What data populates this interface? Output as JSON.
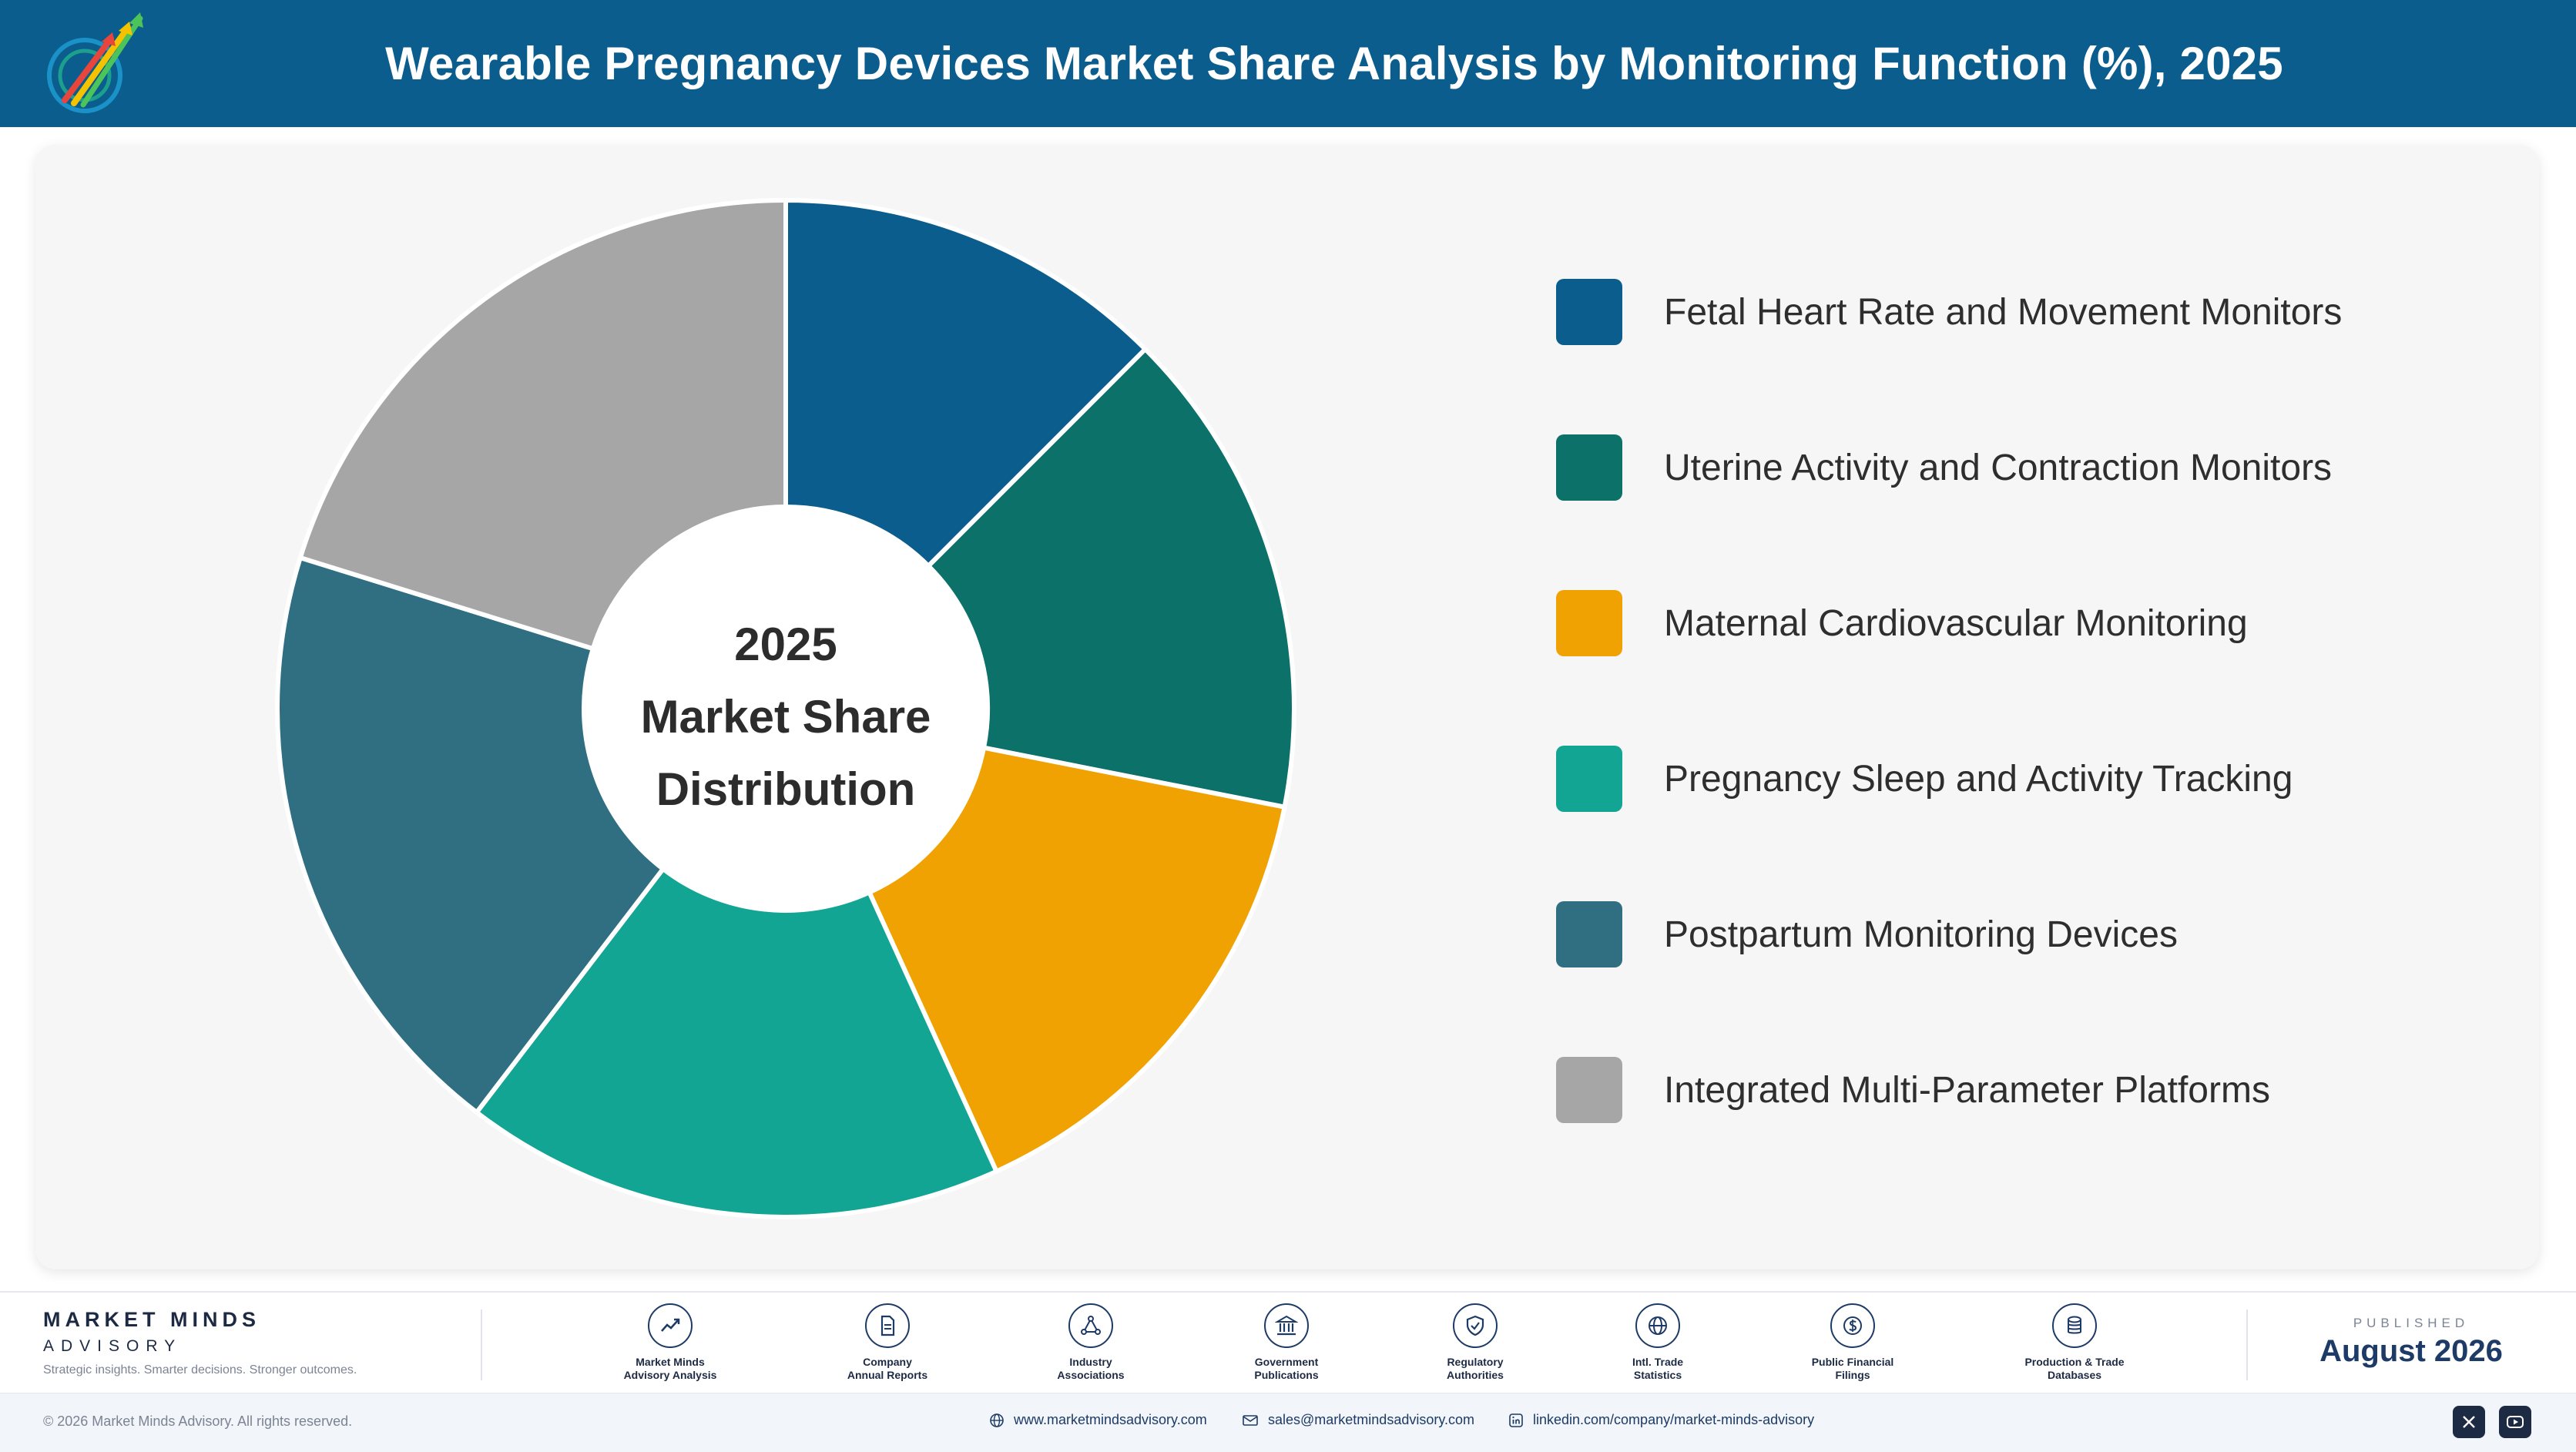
{
  "header": {
    "title": "Wearable Pregnancy Devices Market Share Analysis by Monitoring Function (%), 2025",
    "logo_icon": "rising-arrows-logo-icon"
  },
  "chart_data": {
    "type": "pie",
    "variant": "donut",
    "title": "Wearable Pregnancy Devices Market Share Analysis by Monitoring Function (%), 2025",
    "center_label": [
      "2025",
      "Market Share",
      "Distribution"
    ],
    "categories": [
      "Fetal Heart Rate and Movement Monitors",
      "Uterine Activity and Contraction Monitors",
      "Maternal Cardiovascular Monitoring",
      "Pregnancy Sleep and Activity Tracking",
      "Postpartum Monitoring Devices",
      "Integrated Multi-Parameter Platforms"
    ],
    "values": [
      12.5,
      15.6,
      15.1,
      17.2,
      19.4,
      20.2
    ],
    "colors": [
      "#0a5d8c",
      "#0c7168",
      "#f0a202",
      "#12a594",
      "#306e82",
      "#a6a6a6"
    ],
    "legend_position": "right",
    "start_angle_deg": 0,
    "direction": "clockwise"
  },
  "footer": {
    "brand_name": "MARKET MINDS",
    "brand_sub": "ADVISORY",
    "tagline": "Strategic insights. Smarter decisions. Stronger outcomes.",
    "sources": [
      {
        "line1": "Market Minds",
        "line2": "Advisory Analysis",
        "icon": "trend-line-icon"
      },
      {
        "line1": "Company",
        "line2": "Annual Reports",
        "icon": "document-icon"
      },
      {
        "line1": "Industry",
        "line2": "Associations",
        "icon": "network-icon"
      },
      {
        "line1": "Government",
        "line2": "Publications",
        "icon": "government-building-icon"
      },
      {
        "line1": "Regulatory",
        "line2": "Authorities",
        "icon": "shield-check-icon"
      },
      {
        "line1": "Intl. Trade",
        "line2": "Statistics",
        "icon": "globe-icon"
      },
      {
        "line1": "Public Financial",
        "line2": "Filings",
        "icon": "dollar-coin-icon"
      },
      {
        "line1": "Production & Trade",
        "line2": "Databases",
        "icon": "database-icon"
      }
    ],
    "published_label": "PUBLISHED",
    "published_date": "August 2026",
    "copyright": "© 2026 Market Minds Advisory. All rights reserved.",
    "website": "www.marketmindsadvisory.com",
    "email": "sales@marketmindsadvisory.com",
    "linkedin": "linkedin.com/company/market-minds-advisory",
    "social_icons": [
      "x-icon",
      "youtube-icon"
    ]
  }
}
